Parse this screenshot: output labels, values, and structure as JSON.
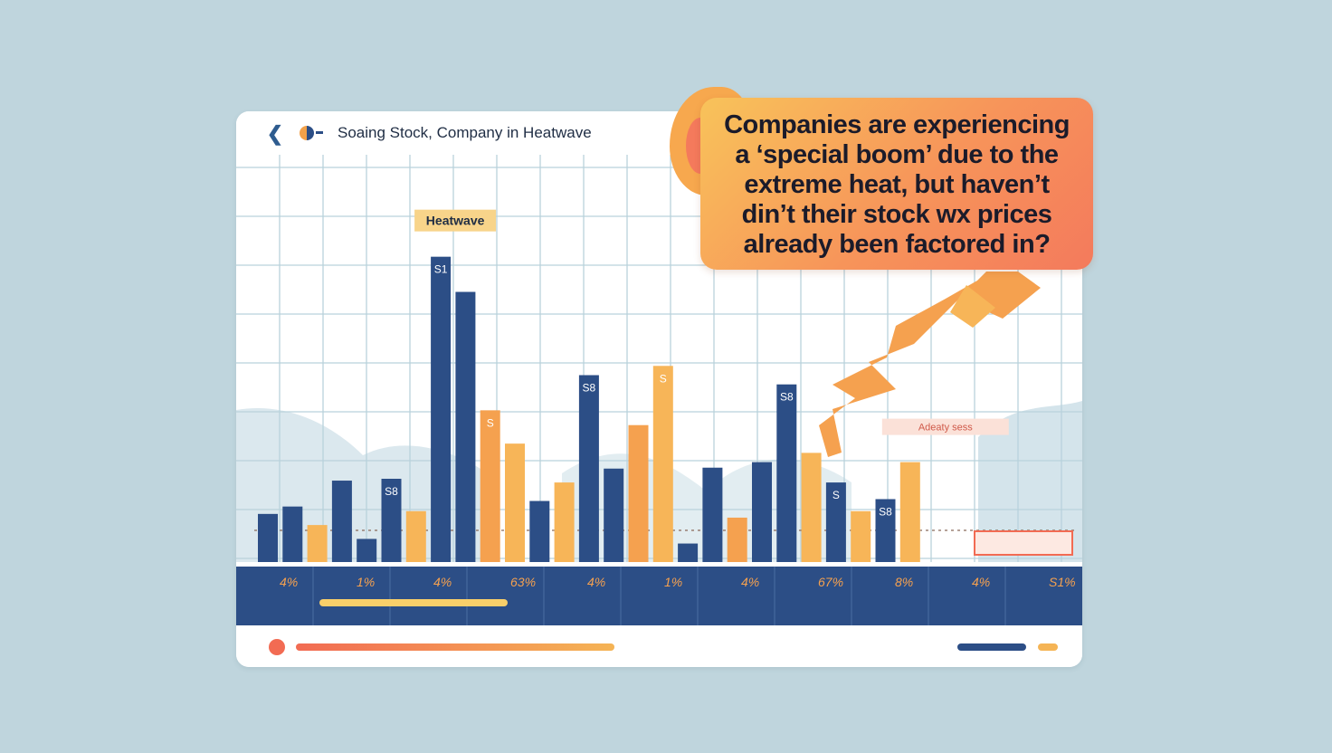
{
  "header": {
    "title": "Soaing Stock, Company in Heatwave",
    "back_icon": "back-arrow-icon",
    "logo_icon": "half-circle-logo-icon"
  },
  "bubble": {
    "lines": [
      "Companies are experiencing",
      "a ‘special boom’ due to the",
      "extreme heat, but haven’t",
      "din’t their stock wx prices",
      "already been factored in?"
    ]
  },
  "colors": {
    "blue": "#2c4e86",
    "orange": "#f5a14f",
    "orange_light": "#f7b558",
    "coral": "#f26b53",
    "band": "#2c4e86",
    "grid": "#b9d2dc"
  },
  "chart_data": {
    "type": "bar",
    "annotations": [
      {
        "text": "Heatwave",
        "bar_index": 7
      },
      {
        "text": "Adeaty sess",
        "bar_index": 26
      }
    ],
    "bars": [
      {
        "series": "blue",
        "value": 52,
        "label": ""
      },
      {
        "series": "blue",
        "value": 60,
        "label": ""
      },
      {
        "series": "orange",
        "value": 40,
        "label": ""
      },
      {
        "series": "blue",
        "value": 88,
        "label": ""
      },
      {
        "series": "blue",
        "value": 25,
        "label": ""
      },
      {
        "series": "blue",
        "value": 90,
        "label": "S8"
      },
      {
        "series": "orange",
        "value": 55,
        "label": ""
      },
      {
        "series": "blue",
        "value": 330,
        "label": "S1"
      },
      {
        "series": "blue",
        "value": 292,
        "label": ""
      },
      {
        "series": "orange",
        "value": 164,
        "label": "S"
      },
      {
        "series": "orange",
        "value": 128,
        "label": ""
      },
      {
        "series": "blue",
        "value": 66,
        "label": ""
      },
      {
        "series": "orange",
        "value": 86,
        "label": ""
      },
      {
        "series": "blue",
        "value": 202,
        "label": "S8"
      },
      {
        "series": "blue",
        "value": 101,
        "label": ""
      },
      {
        "series": "orange",
        "value": 148,
        "label": ""
      },
      {
        "series": "orange",
        "value": 212,
        "label": "S"
      },
      {
        "series": "blue",
        "value": 20,
        "label": ""
      },
      {
        "series": "blue",
        "value": 102,
        "label": ""
      },
      {
        "series": "orange",
        "value": 48,
        "label": ""
      },
      {
        "series": "blue",
        "value": 108,
        "label": ""
      },
      {
        "series": "blue",
        "value": 192,
        "label": "S8"
      },
      {
        "series": "orange",
        "value": 118,
        "label": ""
      },
      {
        "series": "blue",
        "value": 86,
        "label": "S"
      },
      {
        "series": "orange",
        "value": 55,
        "label": ""
      },
      {
        "series": "blue",
        "value": 68,
        "label": "S8"
      },
      {
        "series": "orange",
        "value": 108,
        "label": ""
      }
    ],
    "band_labels": [
      "4%",
      "1%",
      "4%",
      "63%",
      "4%",
      "1%",
      "4%",
      "67%",
      "8%",
      "4%",
      "S1%"
    ],
    "ylim": [
      0,
      360
    ],
    "grid": true
  }
}
